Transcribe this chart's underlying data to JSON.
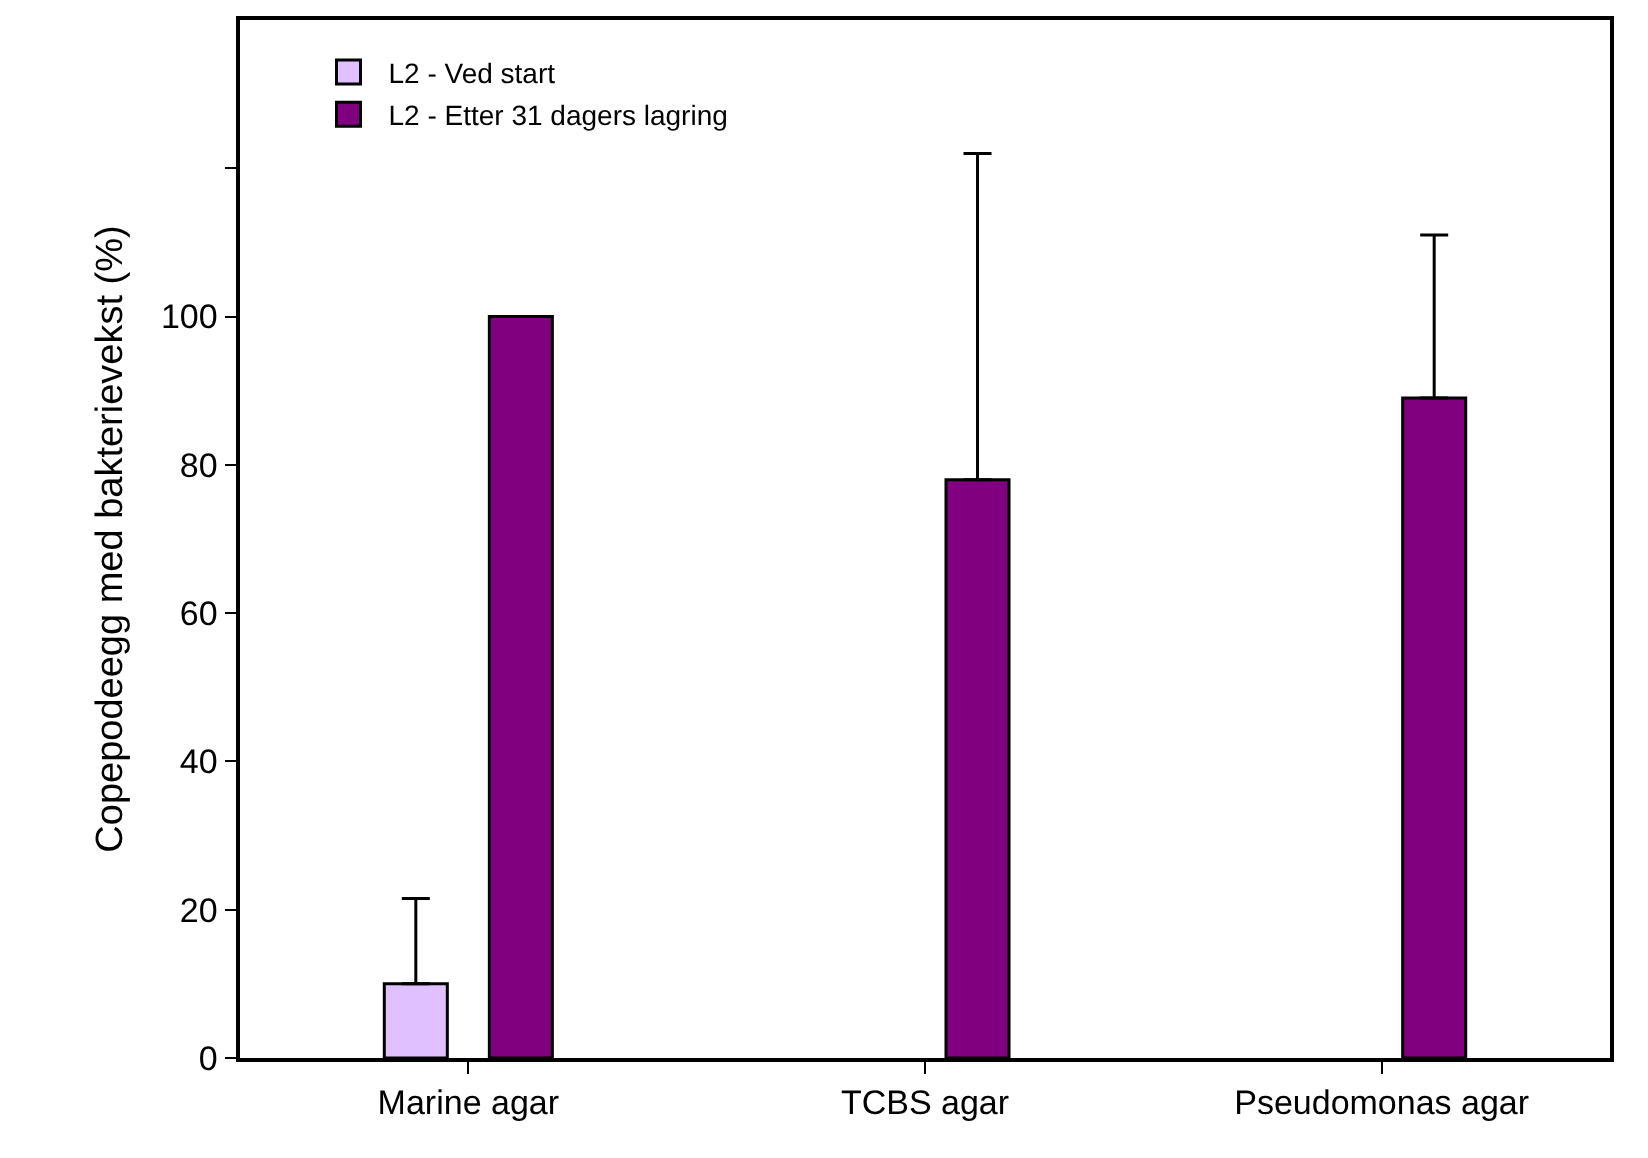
{
  "chart_data": {
    "type": "bar",
    "ylabel": "Copepodeegg med bakterievekst (%)",
    "categories": [
      "Marine agar",
      "TCBS agar",
      "Pseudomonas agar"
    ],
    "series": [
      {
        "name": "L2 - Ved start",
        "color": "#e0c0ff",
        "values": [
          10,
          null,
          null
        ],
        "errors": [
          [
            10,
            21.5
          ],
          null,
          null
        ]
      },
      {
        "name": "L2 - Etter 31 dagers lagring",
        "color": "#800080",
        "values": [
          100,
          78,
          89
        ],
        "errors": [
          null,
          [
            78,
            122
          ],
          [
            89,
            111
          ]
        ]
      }
    ],
    "ylim": [
      0,
      140
    ],
    "yticks": [
      0,
      20,
      40,
      60,
      80,
      100,
      {
        "value": 120,
        "label": null
      }
    ],
    "grid": false,
    "legend": "top left"
  }
}
